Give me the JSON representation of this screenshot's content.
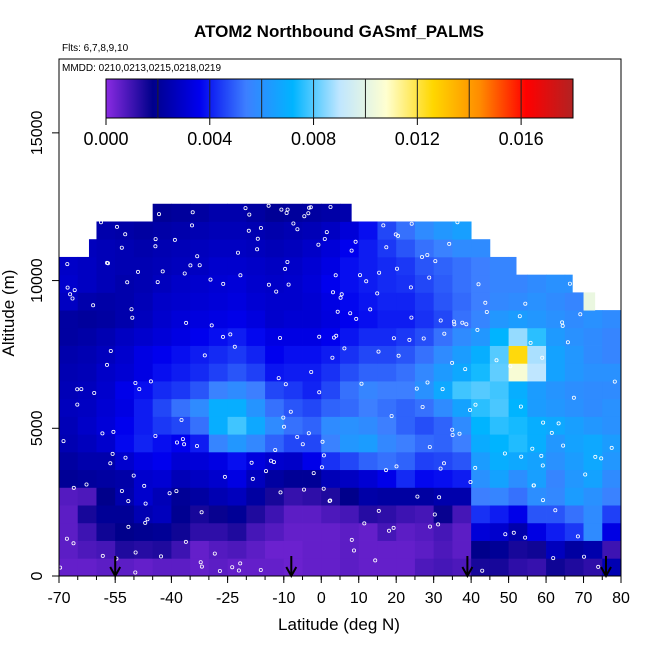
{
  "chart_data": {
    "type": "heatmap",
    "title": "ATOM2 Northbound GASmf_PALMS",
    "notes": [
      "Flts: 6,7,8,9,10",
      "MMDD: 0210,0213,0215,0218,0219"
    ],
    "xlabel": "Latitude (deg N)",
    "ylabel": "Altitude (m)",
    "xlim": [
      -70,
      80
    ],
    "ylim": [
      0,
      17500
    ],
    "x_ticks": [
      -70,
      -55,
      -40,
      -25,
      -10,
      0,
      10,
      20,
      30,
      40,
      50,
      60,
      70,
      80
    ],
    "x_tick_labels": [
      "-70",
      "-55",
      "-40",
      "-25",
      "-10",
      "0",
      "10",
      "20",
      "30",
      "40",
      "50",
      "60",
      "70",
      "80"
    ],
    "y_ticks": [
      0,
      5000,
      10000,
      15000
    ],
    "y_tick_labels": [
      "0",
      "5000",
      "10000",
      "15000"
    ],
    "colorbar": {
      "range": [
        0,
        0.018
      ],
      "ticks": [
        0,
        0.004,
        0.008,
        0.012,
        0.016
      ],
      "tick_labels": [
        "0.000",
        "0.004",
        "0.008",
        "0.012",
        "0.016"
      ],
      "colors": [
        "#8a2be2",
        "#00008b",
        "#0000ee",
        "#3d7fff",
        "#00b4ff",
        "#bfe6ff",
        "#ffffd0",
        "#ffd700",
        "#ff8c00",
        "#ff0000",
        "#b22222"
      ]
    },
    "altitude_levels_m": [
      300,
      900,
      1500,
      2100,
      2700,
      3300,
      3900,
      4500,
      5100,
      5700,
      6300,
      6900,
      7500,
      8100,
      8700,
      9300,
      9900,
      10500,
      11100,
      11700,
      12300
    ],
    "latitude_extent_by_level": [
      [
        -70,
        80
      ],
      [
        -70,
        80
      ],
      [
        -70,
        80
      ],
      [
        -70,
        80
      ],
      [
        -70,
        80
      ],
      [
        -70,
        80
      ],
      [
        -70,
        80
      ],
      [
        -70,
        80
      ],
      [
        -70,
        80
      ],
      [
        -70,
        80
      ],
      [
        -70,
        80
      ],
      [
        -70,
        80
      ],
      [
        -70,
        80
      ],
      [
        -70,
        80
      ],
      [
        -70,
        80
      ],
      [
        -70,
        73
      ],
      [
        -70,
        67
      ],
      [
        -70,
        52
      ],
      [
        -62,
        45
      ],
      [
        -60,
        40
      ],
      [
        -45,
        8
      ]
    ],
    "lat_bins": [
      -67.5,
      -62.5,
      -57.5,
      -52.5,
      -47.5,
      -42.5,
      -37.5,
      -32.5,
      -27.5,
      -22.5,
      -17.5,
      -12.5,
      -7.5,
      -2.5,
      2.5,
      7.5,
      12.5,
      17.5,
      22.5,
      27.5,
      32.5,
      37.5,
      42.5,
      47.5,
      52.5,
      57.5,
      62.5,
      67.5,
      72.5,
      77.5
    ],
    "values": [
      [
        0.0005,
        0.0005,
        0.0006,
        0.0006,
        0.0005,
        0.0006,
        0.0006,
        0.0005,
        0.0006,
        0.0005,
        0.0005,
        0.0005,
        0.0004,
        0.0005,
        0.0005,
        0.0006,
        0.0005,
        0.0005,
        0.0005,
        0.0008,
        0.0009,
        0.0008,
        0.0015,
        0.0015,
        0.0012,
        0.0011,
        0.0016,
        0.0014,
        0.0012,
        0.0025
      ],
      [
        0.0006,
        0.0008,
        0.0009,
        0.0014,
        0.0013,
        0.0014,
        0.001,
        0.0005,
        0.0007,
        0.0008,
        0.0006,
        0.0004,
        0.0004,
        0.0005,
        0.0005,
        0.0006,
        0.0005,
        0.0005,
        0.0005,
        0.0006,
        0.0008,
        0.0006,
        0.0018,
        0.002,
        0.0015,
        0.0016,
        0.0027,
        0.0022,
        0.0024,
        0.001
      ],
      [
        0.0006,
        0.001,
        0.0016,
        0.0018,
        0.0019,
        0.002,
        0.0016,
        0.0012,
        0.0012,
        0.0014,
        0.0009,
        0.0007,
        0.0005,
        0.0005,
        0.0005,
        0.0006,
        0.0005,
        0.0009,
        0.0006,
        0.0007,
        0.0009,
        0.0006,
        0.0032,
        0.003,
        0.0024,
        0.0034,
        0.004,
        0.0044,
        0.0058,
        0.0034
      ],
      [
        0.0006,
        0.0015,
        0.002,
        0.002,
        0.0025,
        0.0027,
        0.0019,
        0.0015,
        0.0017,
        0.002,
        0.0014,
        0.001,
        0.0006,
        0.0006,
        0.0008,
        0.0009,
        0.0013,
        0.0012,
        0.001,
        0.0009,
        0.0017,
        0.0009,
        0.0043,
        0.004,
        0.0035,
        0.0048,
        0.0048,
        0.0052,
        0.0058,
        0.0045
      ],
      [
        0.0007,
        0.0008,
        0.0018,
        0.0024,
        0.003,
        0.0026,
        0.002,
        0.0022,
        0.0025,
        0.0027,
        0.0022,
        0.0015,
        0.0011,
        0.0012,
        0.0014,
        0.0018,
        0.0023,
        0.0022,
        0.0022,
        0.0022,
        0.0024,
        0.0024,
        0.0054,
        0.0056,
        0.0052,
        0.0059,
        0.0057,
        0.0064,
        0.006,
        0.0055
      ],
      [
        0.002,
        0.0021,
        0.0022,
        0.0023,
        0.003,
        0.0031,
        0.0026,
        0.0028,
        0.003,
        0.0034,
        0.0027,
        0.0022,
        0.002,
        0.002,
        0.0026,
        0.0028,
        0.0031,
        0.0035,
        0.0042,
        0.0037,
        0.0038,
        0.004,
        0.006,
        0.0066,
        0.0059,
        0.0065,
        0.0056,
        0.0062,
        0.0066,
        0.0058
      ],
      [
        0.0022,
        0.0024,
        0.0024,
        0.003,
        0.0034,
        0.0036,
        0.0031,
        0.0032,
        0.0034,
        0.0038,
        0.0033,
        0.003,
        0.0029,
        0.0035,
        0.0043,
        0.0046,
        0.005,
        0.0052,
        0.005,
        0.0045,
        0.0046,
        0.0048,
        0.0064,
        0.007,
        0.0068,
        0.0066,
        0.006,
        0.0064,
        0.0068,
        0.0062
      ],
      [
        0.0025,
        0.0027,
        0.003,
        0.0037,
        0.0041,
        0.0038,
        0.0036,
        0.004,
        0.0056,
        0.0062,
        0.0057,
        0.005,
        0.0046,
        0.0046,
        0.0055,
        0.0062,
        0.0064,
        0.0057,
        0.0054,
        0.0051,
        0.005,
        0.0054,
        0.0069,
        0.0072,
        0.0075,
        0.007,
        0.0062,
        0.0066,
        0.0068,
        0.0064
      ],
      [
        0.0026,
        0.0029,
        0.0032,
        0.0036,
        0.004,
        0.0044,
        0.0046,
        0.0052,
        0.007,
        0.0078,
        0.0068,
        0.0058,
        0.0052,
        0.005,
        0.0058,
        0.006,
        0.0058,
        0.0054,
        0.005,
        0.0047,
        0.005,
        0.0058,
        0.0072,
        0.0076,
        0.0074,
        0.007,
        0.0068,
        0.0065,
        0.0062,
        0.006
      ],
      [
        0.0027,
        0.0028,
        0.0031,
        0.0034,
        0.004,
        0.0046,
        0.0052,
        0.0058,
        0.007,
        0.007,
        0.0061,
        0.0052,
        0.0048,
        0.0046,
        0.005,
        0.0051,
        0.0054,
        0.0052,
        0.005,
        0.0052,
        0.0058,
        0.0066,
        0.0076,
        0.0079,
        0.0072,
        0.0064,
        0.0062,
        0.006,
        0.0058,
        0.006
      ],
      [
        0.0026,
        0.0027,
        0.003,
        0.0035,
        0.0038,
        0.0042,
        0.0044,
        0.0048,
        0.0055,
        0.0058,
        0.0054,
        0.0046,
        0.0044,
        0.0041,
        0.0046,
        0.0052,
        0.0056,
        0.0054,
        0.0054,
        0.006,
        0.0068,
        0.0078,
        0.008,
        0.0078,
        0.007,
        0.0064,
        0.0061,
        0.0059,
        0.0058,
        0.0058
      ],
      [
        0.0025,
        0.0026,
        0.0029,
        0.0031,
        0.0034,
        0.0038,
        0.004,
        0.0042,
        0.0045,
        0.0048,
        0.0045,
        0.0039,
        0.004,
        0.004,
        0.0043,
        0.0047,
        0.005,
        0.005,
        0.0052,
        0.0057,
        0.0063,
        0.0068,
        0.0074,
        0.0081,
        0.0106,
        0.009,
        0.0066,
        0.0062,
        0.006,
        0.006
      ],
      [
        0.0024,
        0.0025,
        0.0027,
        0.003,
        0.0034,
        0.0036,
        0.0038,
        0.004,
        0.0042,
        0.0044,
        0.0041,
        0.0036,
        0.0038,
        0.0038,
        0.004,
        0.0043,
        0.0046,
        0.0046,
        0.0048,
        0.0052,
        0.0058,
        0.0064,
        0.007,
        0.008,
        0.0125,
        0.0088,
        0.0066,
        0.0062,
        0.0058,
        0.0056
      ],
      [
        0.0022,
        0.0023,
        0.0025,
        0.0028,
        0.003,
        0.0032,
        0.0034,
        0.0036,
        0.0038,
        0.004,
        0.0037,
        0.0034,
        0.0034,
        0.0034,
        0.0036,
        0.0039,
        0.0042,
        0.0042,
        0.0044,
        0.0047,
        0.0052,
        0.0058,
        0.0062,
        0.0072,
        0.0086,
        0.0076,
        0.0063,
        0.006,
        0.0058,
        0.0056
      ],
      [
        0.0022,
        0.0021,
        0.0022,
        0.0024,
        0.0027,
        0.003,
        0.0032,
        0.0033,
        0.0034,
        0.0035,
        0.0033,
        0.003,
        0.0031,
        0.0031,
        0.0033,
        0.0036,
        0.0038,
        0.004,
        0.004,
        0.0043,
        0.0046,
        0.0052,
        0.0056,
        0.0062,
        0.0064,
        0.0062,
        0.006,
        0.0058,
        0.006,
        0.0058
      ],
      [
        0.0028,
        0.0024,
        0.0023,
        0.0024,
        0.0026,
        0.0029,
        0.003,
        0.0031,
        0.0032,
        0.0033,
        0.0031,
        0.003,
        0.003,
        0.0031,
        0.0034,
        0.0037,
        0.0039,
        0.0041,
        0.0041,
        0.0044,
        0.0048,
        0.0051,
        0.0054,
        0.0057,
        0.0058,
        0.006,
        0.0058,
        0.0056,
        0.0102,
        0.0058
      ],
      [
        0.003,
        0.0028,
        0.0026,
        0.0024,
        0.0025,
        0.0027,
        0.0029,
        0.003,
        0.0031,
        0.0032,
        0.003,
        0.0029,
        0.003,
        0.0032,
        0.0036,
        0.0038,
        0.004,
        0.0042,
        0.0043,
        0.0046,
        0.0049,
        0.0052,
        0.0054,
        0.0056,
        0.0056,
        0.0058,
        0.006,
        0.006,
        0.006,
        0.006
      ],
      [
        0.0029,
        0.0028,
        0.0026,
        0.0025,
        0.0025,
        0.0026,
        0.0027,
        0.0028,
        0.003,
        0.003,
        0.0029,
        0.0028,
        0.0029,
        0.0031,
        0.0034,
        0.0038,
        0.004,
        0.0042,
        0.0044,
        0.0048,
        0.005,
        0.0052,
        0.0054,
        0.0056,
        0.0056,
        0.0056,
        0.0056,
        0.0056,
        0.0056,
        0.0056
      ],
      [
        0.0028,
        0.0027,
        0.0026,
        0.0025,
        0.0024,
        0.0025,
        0.0026,
        0.0027,
        0.0028,
        0.0028,
        0.0027,
        0.0026,
        0.0027,
        0.0029,
        0.0032,
        0.0036,
        0.004,
        0.0044,
        0.0048,
        0.0052,
        0.0055,
        0.0058,
        0.0058,
        0.0058,
        0.0058,
        0.0058,
        0.0058,
        0.0058,
        0.0058,
        0.0058
      ],
      [
        0.0025,
        0.0025,
        0.0024,
        0.0023,
        0.0022,
        0.0023,
        0.0024,
        0.0025,
        0.0026,
        0.0026,
        0.0025,
        0.0024,
        0.0025,
        0.0026,
        0.0028,
        0.0032,
        0.0038,
        0.0046,
        0.0052,
        0.0058,
        0.0062,
        0.0065,
        0.0065,
        0.0065,
        0.0065,
        0.0065,
        0.0065,
        0.0065,
        0.0065,
        0.0065
      ],
      [
        0.002,
        0.002,
        0.002,
        0.002,
        0.0019,
        0.002,
        0.0021,
        0.0022,
        0.0024,
        0.0024,
        0.0022,
        0.002,
        0.0021,
        0.0022,
        0.0023,
        0.0024,
        0.0024,
        0.0024,
        0.0024,
        0.0024,
        0.0024,
        0.0024,
        0.0024,
        0.0024,
        0.0024,
        0.0024,
        0.0024,
        0.0024,
        0.0024,
        0.0024
      ]
    ],
    "profile_markers_lat": [
      -55,
      -8,
      39,
      76
    ]
  }
}
